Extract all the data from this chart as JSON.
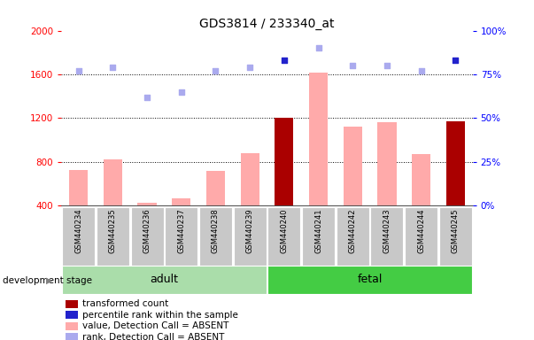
{
  "title": "GDS3814 / 233340_at",
  "samples": [
    "GSM440234",
    "GSM440235",
    "GSM440236",
    "GSM440237",
    "GSM440238",
    "GSM440239",
    "GSM440240",
    "GSM440241",
    "GSM440242",
    "GSM440243",
    "GSM440244",
    "GSM440245"
  ],
  "bar_values": [
    730,
    820,
    430,
    470,
    720,
    880,
    1200,
    1620,
    1120,
    1160,
    870,
    1170
  ],
  "bar_colors": [
    "#ffaaaa",
    "#ffaaaa",
    "#ffaaaa",
    "#ffaaaa",
    "#ffaaaa",
    "#ffaaaa",
    "#aa0000",
    "#ffaaaa",
    "#ffaaaa",
    "#ffaaaa",
    "#ffaaaa",
    "#aa0000"
  ],
  "rank_values": [
    77,
    79,
    62,
    65,
    77,
    79,
    83,
    90,
    80,
    80,
    77,
    83
  ],
  "rank_is_present": [
    false,
    false,
    false,
    false,
    false,
    false,
    true,
    false,
    false,
    false,
    false,
    true
  ],
  "rank_color_absent": "#aaaaee",
  "rank_color_present": "#2222cc",
  "ylim_left": [
    400,
    2000
  ],
  "ylim_right": [
    0,
    100
  ],
  "yticks_left": [
    400,
    800,
    1200,
    1600,
    2000
  ],
  "yticks_right": [
    0,
    25,
    50,
    75,
    100
  ],
  "ytick_labels_right": [
    "0%",
    "25%",
    "50%",
    "75%",
    "100%"
  ],
  "groups": [
    {
      "label": "adult",
      "start": 0,
      "end": 5,
      "color": "#aaddaa"
    },
    {
      "label": "fetal",
      "start": 6,
      "end": 11,
      "color": "#44cc44"
    }
  ],
  "group_label_prefix": "development stage",
  "bar_bottom": 400,
  "bar_width": 0.55,
  "legend_items": [
    {
      "label": "transformed count",
      "color": "#aa0000"
    },
    {
      "label": "percentile rank within the sample",
      "color": "#2222cc"
    },
    {
      "label": "value, Detection Call = ABSENT",
      "color": "#ffaaaa"
    },
    {
      "label": "rank, Detection Call = ABSENT",
      "color": "#aaaaee"
    }
  ],
  "grid_lines": [
    800,
    1200,
    1600
  ]
}
